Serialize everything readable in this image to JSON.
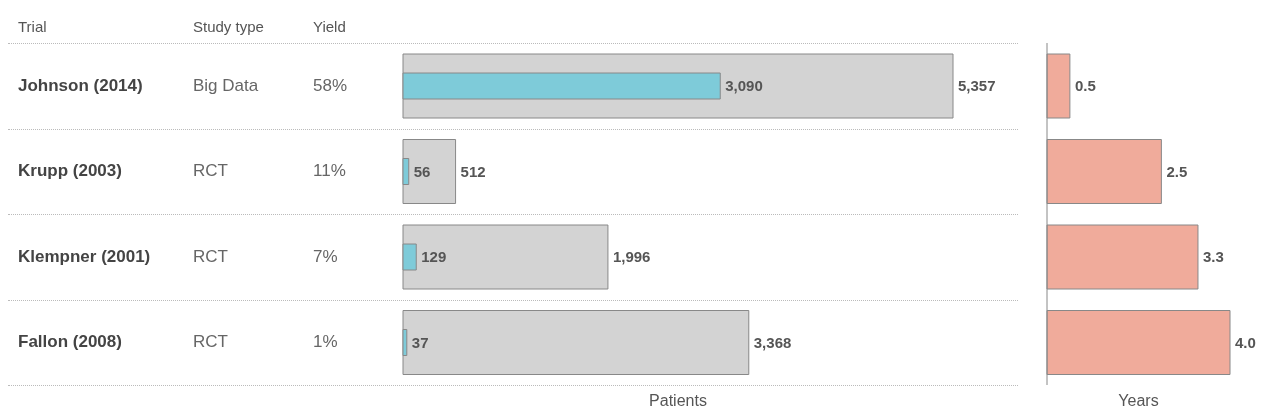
{
  "chart_data": [
    {
      "type": "bar",
      "orientation": "horizontal",
      "ylabel": "Trial",
      "xlabel": "Patients",
      "categories": [
        "Johnson (2014)",
        "Krupp (2003)",
        "Klempner (2001)",
        "Fallon (2008)"
      ],
      "series": [
        {
          "color": "#d3d3d3",
          "values": [
            5357,
            512,
            1996,
            3368
          ],
          "value_labels": [
            "5,357",
            "512",
            "1,996",
            "3,368"
          ]
        },
        {
          "color": "#7ecbd9",
          "values": [
            3090,
            56,
            129,
            37
          ],
          "value_labels": [
            "3,090",
            "56",
            "129",
            "37"
          ]
        }
      ],
      "grid": "y",
      "annotations": [
        "Study type",
        "Yield",
        "Big Data",
        "58%",
        "RCT",
        "11%",
        "RCT",
        "7%",
        "RCT",
        "1%"
      ]
    },
    {
      "type": "bar",
      "orientation": "horizontal",
      "xlabel": "Years",
      "categories": [
        null,
        null,
        null,
        null
      ],
      "tick_labels": false,
      "values": [
        0.5,
        2.5,
        3.3,
        4.0
      ],
      "value_labels": [
        "0.5",
        "2.5",
        "3.3",
        "4.0"
      ],
      "color": "#f0ab9b"
    }
  ]
}
